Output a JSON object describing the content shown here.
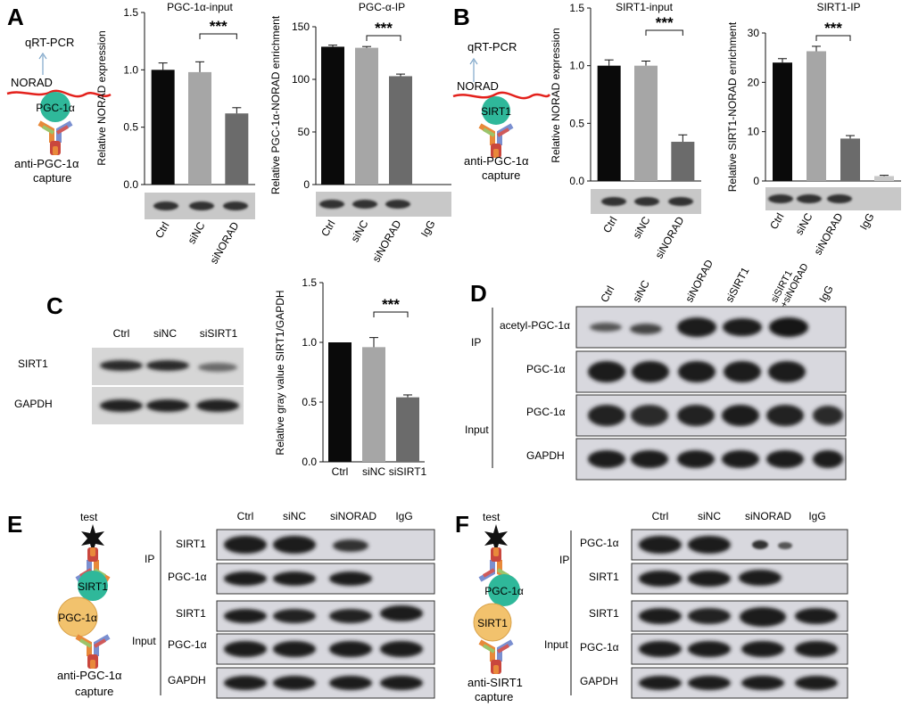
{
  "panel_labels": {
    "A": "A",
    "B": "B",
    "C": "C",
    "D": "D",
    "E": "E",
    "F": "F"
  },
  "colors": {
    "ctrl": "#0a0a0a",
    "sinc": "#a6a6a6",
    "sitreat": "#6b6b6b",
    "igg": "#c8c8c8",
    "green": "#2fb89a",
    "orange": "#f2c26d",
    "rna": "#e3211c",
    "arrow": "#7fa6c9"
  },
  "panelA": {
    "diagram": {
      "top": "qRT-PCR",
      "rna": "NORAD",
      "protein": "PGC-1α",
      "antibody": "anti-PGC-1α",
      "capture": "capture"
    },
    "lane_labels": [
      "Ctrl",
      "siNC",
      "siNORAD",
      "IgG"
    ]
  },
  "panelB": {
    "diagram": {
      "top": "qRT-PCR",
      "rna": "NORAD",
      "protein": "SIRT1",
      "antibody": "anti-PGC-1α",
      "capture": "capture"
    },
    "lane_labels": [
      "Ctrl",
      "siNC",
      "siNORAD",
      "IgG"
    ]
  },
  "panelC": {
    "lane_labels": [
      "Ctrl",
      "siNC",
      "siSIRT1"
    ],
    "row_labels": [
      "SIRT1",
      "GAPDH"
    ]
  },
  "panelD": {
    "lane_labels": [
      "Ctrl",
      "siNC",
      "siNORAD",
      "siSIRT1",
      "siSIRT1\n+siNORAD",
      "IgG"
    ],
    "group_ip": "IP",
    "group_input": "Input",
    "row_labels": [
      "acetyl-PGC-1α",
      "PGC-1α",
      "PGC-1α",
      "GAPDH"
    ]
  },
  "panelE": {
    "diagram": {
      "test": "test",
      "top": "SIRT1",
      "bottom": "PGC-1α",
      "antibody": "anti-PGC-1α",
      "capture": "capture"
    },
    "lane_labels": [
      "Ctrl",
      "siNC",
      "siNORAD",
      "IgG"
    ],
    "group_ip": "IP",
    "group_input": "Input",
    "row_labels": [
      "SIRT1",
      "PGC-1α",
      "SIRT1",
      "PGC-1α",
      "GAPDH"
    ]
  },
  "panelF": {
    "diagram": {
      "test": "test",
      "top": "PGC-1α",
      "bottom": "SIRT1",
      "antibody": "anti-SIRT1",
      "capture": "capture"
    },
    "lane_labels": [
      "Ctrl",
      "siNC",
      "siNORAD",
      "IgG"
    ],
    "group_ip": "IP",
    "group_input": "Input",
    "row_labels": [
      "PGC-1α",
      "SIRT1",
      "SIRT1",
      "PGC-1α",
      "GAPDH"
    ]
  },
  "chart_data": [
    {
      "id": "A1",
      "type": "bar",
      "title": "PGC-1α-input",
      "ylabel": "Relative NORAD expression",
      "categories": [
        "Ctrl",
        "siNC",
        "siNORAD"
      ],
      "values": [
        1.0,
        0.98,
        0.62
      ],
      "errors": [
        0.06,
        0.09,
        0.05
      ],
      "ylim": [
        0,
        1.5
      ],
      "yticks": [
        0,
        0.5,
        1.0,
        1.5
      ],
      "ytick_labels": [
        "0.0",
        "0.5",
        "1.0",
        "1.5"
      ],
      "significance": {
        "from": 1,
        "to": 2,
        "label": "***"
      }
    },
    {
      "id": "A2",
      "type": "bar",
      "title": "PGC-α-IP",
      "ylabel": "Relative PGC-1α-NORAD enrichment",
      "categories": [
        "Ctrl",
        "siNC",
        "siNORAD",
        "IgG"
      ],
      "values": [
        131,
        130,
        103,
        0
      ],
      "errors": [
        1.5,
        1.2,
        2,
        0
      ],
      "ylim": [
        0,
        150
      ],
      "yticks": [
        0,
        50,
        100,
        150
      ],
      "ytick_labels": [
        "0",
        "50",
        "100",
        "150"
      ],
      "significance": {
        "from": 1,
        "to": 2,
        "label": "***"
      }
    },
    {
      "id": "B1",
      "type": "bar",
      "title": "SIRT1-input",
      "ylabel": "Relative NORAD expression",
      "categories": [
        "Ctrl",
        "siNC",
        "siNORAD"
      ],
      "values": [
        1.0,
        1.0,
        0.34
      ],
      "errors": [
        0.05,
        0.04,
        0.06
      ],
      "ylim": [
        0,
        1.5
      ],
      "yticks": [
        0,
        0.5,
        1.0,
        1.5
      ],
      "ytick_labels": [
        "0.0",
        "0.5",
        "1.0",
        "1.5"
      ],
      "significance": {
        "from": 1,
        "to": 2,
        "label": "***"
      }
    },
    {
      "id": "B2",
      "type": "bar",
      "title": "SIRT1-IP",
      "ylabel": "Relative SIRT1-NORAD enrichment",
      "categories": [
        "Ctrl",
        "siNC",
        "siNORAD",
        "IgG"
      ],
      "values": [
        24,
        26.3,
        8.6,
        1.0
      ],
      "errors": [
        0.8,
        1.0,
        0.6,
        0.15
      ],
      "ylim": [
        0,
        30
      ],
      "yticks": [
        0,
        10,
        20,
        30
      ],
      "ytick_labels": [
        "0",
        "10",
        "20",
        "30"
      ],
      "significance": {
        "from": 1,
        "to": 2,
        "label": "***"
      }
    },
    {
      "id": "C",
      "type": "bar",
      "title": "",
      "ylabel": "Relative gray value SIRT1/GAPDH",
      "categories": [
        "Ctrl",
        "siNC",
        "siSIRT1"
      ],
      "values": [
        1.0,
        0.96,
        0.54
      ],
      "errors": [
        0,
        0.08,
        0.02
      ],
      "ylim": [
        0,
        1.5
      ],
      "yticks": [
        0,
        0.5,
        1.0,
        1.5
      ],
      "ytick_labels": [
        "0.0",
        "0.5",
        "1.0",
        "1.5"
      ],
      "significance": {
        "from": 1,
        "to": 2,
        "label": "***"
      }
    }
  ]
}
